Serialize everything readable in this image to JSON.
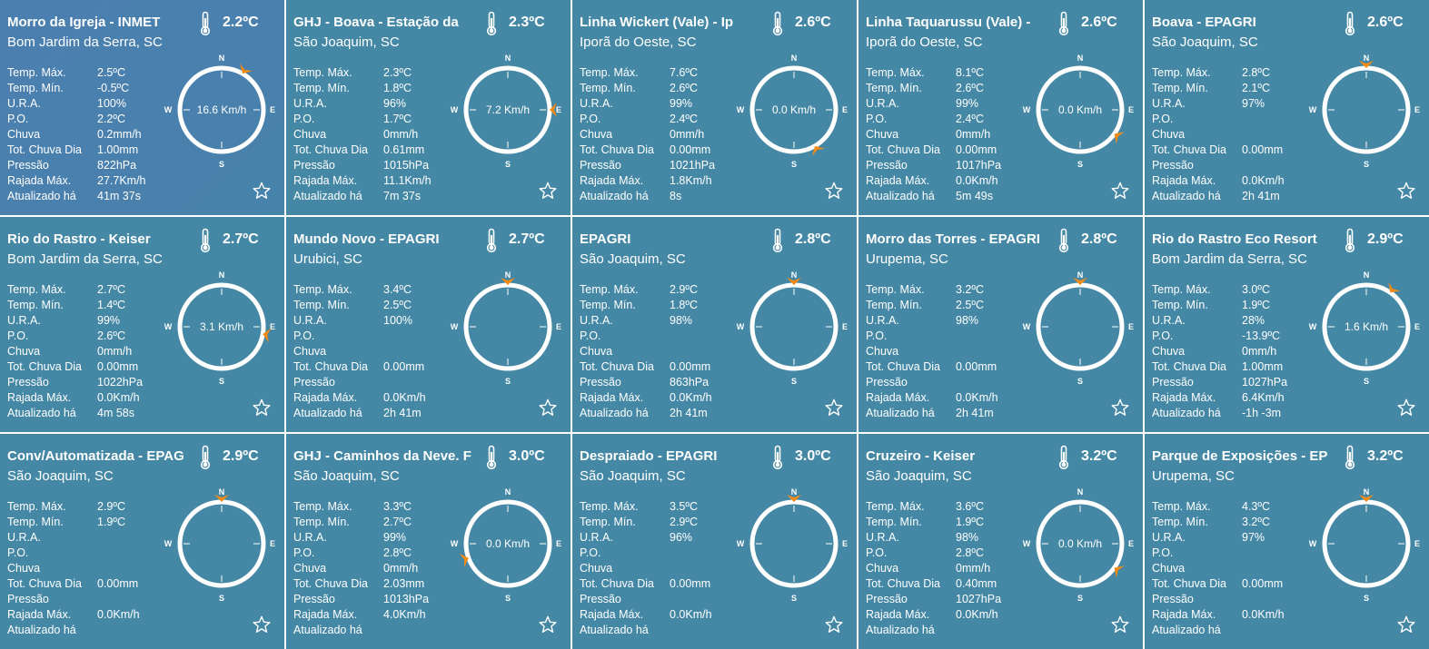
{
  "labels": {
    "temp_max": "Temp. Máx.",
    "temp_min": "Temp. Mín.",
    "ura": "U.R.A.",
    "po": "P.O.",
    "chuva": "Chuva",
    "tot_chuva_dia": "Tot. Chuva Dia",
    "pressao": "Pressão",
    "rajada_max": "Rajada Máx.",
    "atualizado_ha": "Atualizado há"
  },
  "compass_labels": {
    "n": "N",
    "s": "S",
    "e": "E",
    "w": "W"
  },
  "icons": {
    "thermometer": "thermometer-icon",
    "favorite": "star-outline-icon",
    "wind": "wind-direction-arrow-icon"
  },
  "colors": {
    "card_background": "#4588a5",
    "wind_arrow": "#f28a16",
    "text": "#ffffff"
  },
  "stations": [
    {
      "name": "Morro da Igreja - INMET",
      "location": "Bom Jardim da Serra, SC",
      "temp": "2.2ºC",
      "temp_max": "2.5ºC",
      "temp_min": "-0.5ºC",
      "ura": "100%",
      "po": "2.2ºC",
      "chuva": "0.2mm/h",
      "tot_chuva_dia": "1.00mm",
      "pressao": "822hPa",
      "rajada_max": "27.7Km/h",
      "atualizado_ha": "41m 37s",
      "wind_speed": "16.6 Km/h",
      "wind_dir_deg": 30
    },
    {
      "name": "GHJ - Boava - Estação da",
      "location": "São Joaquim, SC",
      "temp": "2.3ºC",
      "temp_max": "2.3ºC",
      "temp_min": "1.8ºC",
      "ura": "96%",
      "po": "1.7ºC",
      "chuva": "0mm/h",
      "tot_chuva_dia": "0.61mm",
      "pressao": "1015hPa",
      "rajada_max": "11.1Km/h",
      "atualizado_ha": "7m 37s",
      "wind_speed": "7.2 Km/h",
      "wind_dir_deg": 90
    },
    {
      "name": "Linha Wickert (Vale) - Ip",
      "location": "Iporã do Oeste, SC",
      "temp": "2.6ºC",
      "temp_max": "7.6ºC",
      "temp_min": "2.6ºC",
      "ura": "99%",
      "po": "2.4ºC",
      "chuva": "0mm/h",
      "tot_chuva_dia": "0.00mm",
      "pressao": "1021hPa",
      "rajada_max": "1.8Km/h",
      "atualizado_ha": "8s",
      "wind_speed": "0.0 Km/h",
      "wind_dir_deg": 150
    },
    {
      "name": "Linha Taquarussu (Vale) -",
      "location": "Iporã do Oeste, SC",
      "temp": "2.6ºC",
      "temp_max": "8.1ºC",
      "temp_min": "2.6ºC",
      "ura": "99%",
      "po": "2.4ºC",
      "chuva": "0mm/h",
      "tot_chuva_dia": "0.00mm",
      "pressao": "1017hPa",
      "rajada_max": "0.0Km/h",
      "atualizado_ha": "5m 49s",
      "wind_speed": "0.0 Km/h",
      "wind_dir_deg": 125
    },
    {
      "name": "Boava - EPAGRI",
      "location": "São Joaquim, SC",
      "temp": "2.6ºC",
      "temp_max": "2.8ºC",
      "temp_min": "2.1ºC",
      "ura": "97%",
      "po": "",
      "chuva": "",
      "tot_chuva_dia": "0.00mm",
      "pressao": "",
      "rajada_max": "0.0Km/h",
      "atualizado_ha": "2h 41m",
      "wind_speed": "",
      "wind_dir_deg": 0
    },
    {
      "name": "Rio do Rastro - Keiser",
      "location": "Bom Jardim da Serra, SC",
      "temp": "2.7ºC",
      "temp_max": "2.7ºC",
      "temp_min": "1.4ºC",
      "ura": "99%",
      "po": "2.6ºC",
      "chuva": "0mm/h",
      "tot_chuva_dia": "0.00mm",
      "pressao": "1022hPa",
      "rajada_max": "0.0Km/h",
      "atualizado_ha": "4m 58s",
      "wind_speed": "3.1 Km/h",
      "wind_dir_deg": 100
    },
    {
      "name": "Mundo Novo - EPAGRI",
      "location": "Urubici, SC",
      "temp": "2.7ºC",
      "temp_max": "3.4ºC",
      "temp_min": "2.5ºC",
      "ura": "100%",
      "po": "",
      "chuva": "",
      "tot_chuva_dia": "0.00mm",
      "pressao": "",
      "rajada_max": "0.0Km/h",
      "atualizado_ha": "2h 41m",
      "wind_speed": "",
      "wind_dir_deg": 0
    },
    {
      "name": "EPAGRI",
      "location": "São Joaquim, SC",
      "temp": "2.8ºC",
      "temp_max": "2.9ºC",
      "temp_min": "1.8ºC",
      "ura": "98%",
      "po": "",
      "chuva": "",
      "tot_chuva_dia": "0.00mm",
      "pressao": "863hPa",
      "rajada_max": "0.0Km/h",
      "atualizado_ha": "2h 41m",
      "wind_speed": "",
      "wind_dir_deg": 0
    },
    {
      "name": "Morro das Torres - EPAGRI",
      "location": "Urupema, SC",
      "temp": "2.8ºC",
      "temp_max": "3.2ºC",
      "temp_min": "2.5ºC",
      "ura": "98%",
      "po": "",
      "chuva": "",
      "tot_chuva_dia": "0.00mm",
      "pressao": "",
      "rajada_max": "0.0Km/h",
      "atualizado_ha": "2h 41m",
      "wind_speed": "",
      "wind_dir_deg": 0
    },
    {
      "name": "Rio do Rastro Eco Resort",
      "location": "Bom Jardim da Serra, SC",
      "temp": "2.9ºC",
      "temp_max": "3.0ºC",
      "temp_min": "1.9ºC",
      "ura": "28%",
      "po": "-13.9ºC",
      "chuva": "0mm/h",
      "tot_chuva_dia": "1.00mm",
      "pressao": "1027hPa",
      "rajada_max": "6.4Km/h",
      "atualizado_ha": "-1h -3m",
      "wind_speed": "1.6 Km/h",
      "wind_dir_deg": 35
    },
    {
      "name": "Conv/Automatizada - EPAG",
      "location": "São Joaquim, SC",
      "temp": "2.9ºC",
      "temp_max": "2.9ºC",
      "temp_min": "1.9ºC",
      "ura": "",
      "po": "",
      "chuva": "",
      "tot_chuva_dia": "0.00mm",
      "pressao": "",
      "rajada_max": "0.0Km/h",
      "atualizado_ha": "",
      "wind_speed": "",
      "wind_dir_deg": 0
    },
    {
      "name": "GHJ - Caminhos da Neve. F",
      "location": "São Joaquim, SC",
      "temp": "3.0ºC",
      "temp_max": "3.3ºC",
      "temp_min": "2.7ºC",
      "ura": "99%",
      "po": "2.8ºC",
      "chuva": "0mm/h",
      "tot_chuva_dia": "2.03mm",
      "pressao": "1013hPa",
      "rajada_max": "4.0Km/h",
      "atualizado_ha": "",
      "wind_speed": "0.0 Km/h",
      "wind_dir_deg": 250
    },
    {
      "name": "Despraiado - EPAGRI",
      "location": "São Joaquim, SC",
      "temp": "3.0ºC",
      "temp_max": "3.5ºC",
      "temp_min": "2.9ºC",
      "ura": "96%",
      "po": "",
      "chuva": "",
      "tot_chuva_dia": "0.00mm",
      "pressao": "",
      "rajada_max": "0.0Km/h",
      "atualizado_ha": "",
      "wind_speed": "",
      "wind_dir_deg": 0
    },
    {
      "name": "Cruzeiro - Keiser",
      "location": "São Joaquim, SC",
      "temp": "3.2ºC",
      "temp_max": "3.6ºC",
      "temp_min": "1.9ºC",
      "ura": "98%",
      "po": "2.8ºC",
      "chuva": "0mm/h",
      "tot_chuva_dia": "0.40mm",
      "pressao": "1027hPa",
      "rajada_max": "0.0Km/h",
      "atualizado_ha": "",
      "wind_speed": "0.0 Km/h",
      "wind_dir_deg": 125
    },
    {
      "name": "Parque de Exposições - EP",
      "location": "Urupema, SC",
      "temp": "3.2ºC",
      "temp_max": "4.3ºC",
      "temp_min": "3.2ºC",
      "ura": "97%",
      "po": "",
      "chuva": "",
      "tot_chuva_dia": "0.00mm",
      "pressao": "",
      "rajada_max": "0.0Km/h",
      "atualizado_ha": "",
      "wind_speed": "",
      "wind_dir_deg": 0
    }
  ]
}
